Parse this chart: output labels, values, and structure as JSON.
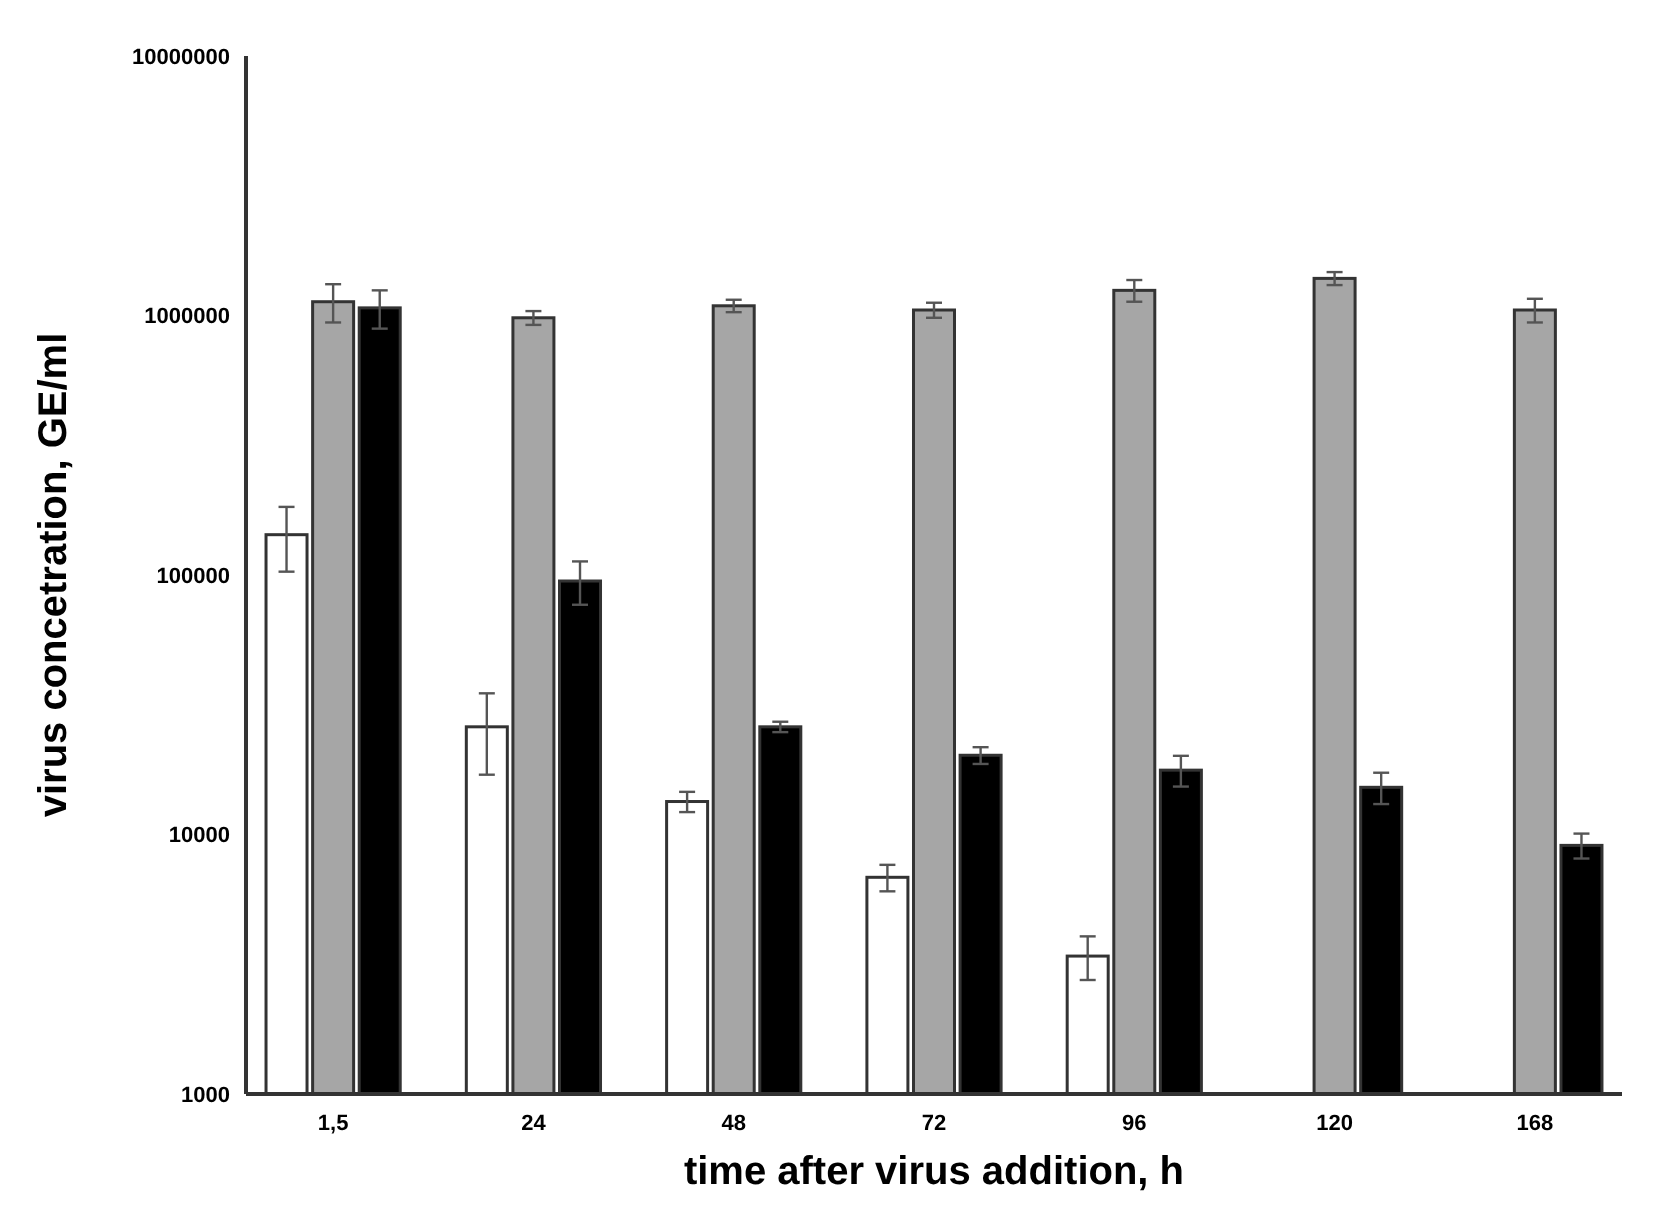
{
  "chart_data": {
    "type": "bar",
    "xlabel": "time after virus addition, h",
    "ylabel": "virus concetration, GE/ml",
    "categories": [
      "1,5",
      "24",
      "48",
      "72",
      "96",
      "120",
      "168"
    ],
    "log": true,
    "ylim": [
      1000,
      10000000
    ],
    "yticks": [
      1000,
      10000,
      100000,
      1000000,
      10000000
    ],
    "grid": false,
    "series": [
      {
        "color": "#ffffff",
        "values": [
          143000,
          26000,
          13400,
          6840,
          3400,
          null,
          null
        ],
        "errors": [
          40000,
          9000,
          1200,
          800,
          650,
          null,
          null
        ]
      },
      {
        "color": "#a6a6a6",
        "values": [
          1130000,
          980000,
          1090000,
          1050000,
          1250000,
          1390000,
          1050000
        ],
        "errors": [
          190000,
          60000,
          60000,
          70000,
          120000,
          80000,
          110000
        ]
      },
      {
        "color": "#000000",
        "values": [
          1070000,
          94800,
          26000,
          20200,
          17700,
          15200,
          9080
        ],
        "errors": [
          180000,
          18000,
          1200,
          1500,
          2400,
          2100,
          1000
        ]
      }
    ]
  }
}
